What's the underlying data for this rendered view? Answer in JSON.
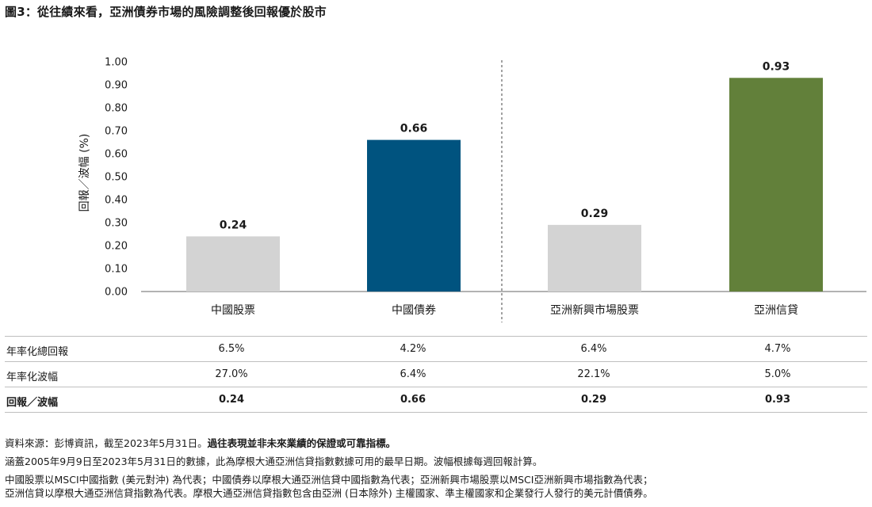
{
  "title": "圖3：從往績來看，亞洲債券市場的風險調整後回報優於股市",
  "chart_data": {
    "type": "bar",
    "categories": [
      "中國股票",
      "中國債券",
      "亞洲新興市場股票",
      "亞洲信貸"
    ],
    "values": [
      0.24,
      0.66,
      0.29,
      0.93
    ],
    "value_labels": [
      "0.24",
      "0.66",
      "0.29",
      "0.93"
    ],
    "bar_colors": [
      "#d3d3d3",
      "#00537f",
      "#d3d3d3",
      "#62803a"
    ],
    "ylabel": "回報／波幅 (%)",
    "ylim": [
      0,
      1.0
    ],
    "yticks": [
      "0.00",
      "0.10",
      "0.20",
      "0.30",
      "0.40",
      "0.50",
      "0.60",
      "0.70",
      "0.80",
      "0.90",
      "1.00"
    ],
    "divider_after_category": 2,
    "grid": false,
    "legend": "none"
  },
  "table": {
    "rows": [
      {
        "label": "年率化總回報",
        "values": [
          "6.5%",
          "4.2%",
          "6.4%",
          "4.7%"
        ],
        "bold": false
      },
      {
        "label": "年率化波幅",
        "values": [
          "27.0%",
          "6.4%",
          "22.1%",
          "5.0%"
        ],
        "bold": false
      },
      {
        "label": "回報／波幅",
        "values": [
          "0.24",
          "0.66",
          "0.29",
          "0.93"
        ],
        "bold": true
      }
    ]
  },
  "footnotes": {
    "source_prefix": "資料來源：彭博資訊，截至2023年5月31日。",
    "source_bold": "過往表現並非未來業績的保證或可靠指標。",
    "line2": "涵蓋2005年9月9日至2023年5月31日的數據，此為摩根大通亞洲信貸指數數據可用的最早日期。波幅根據每週回報計算。",
    "line3": "中國股票以MSCI中國指數 (美元對沖) 為代表；中國債券以摩根大通亞洲信貸中國指數為代表；亞洲新興市場股票以MSCI亞洲新興市場指數為代表；",
    "line4": "亞洲信貸以摩根大通亞洲信貸指數為代表。摩根大通亞洲信貸指數包含由亞洲 (日本除外) 主權國家、準主權國家和企業發行人發行的美元計價債券。"
  }
}
